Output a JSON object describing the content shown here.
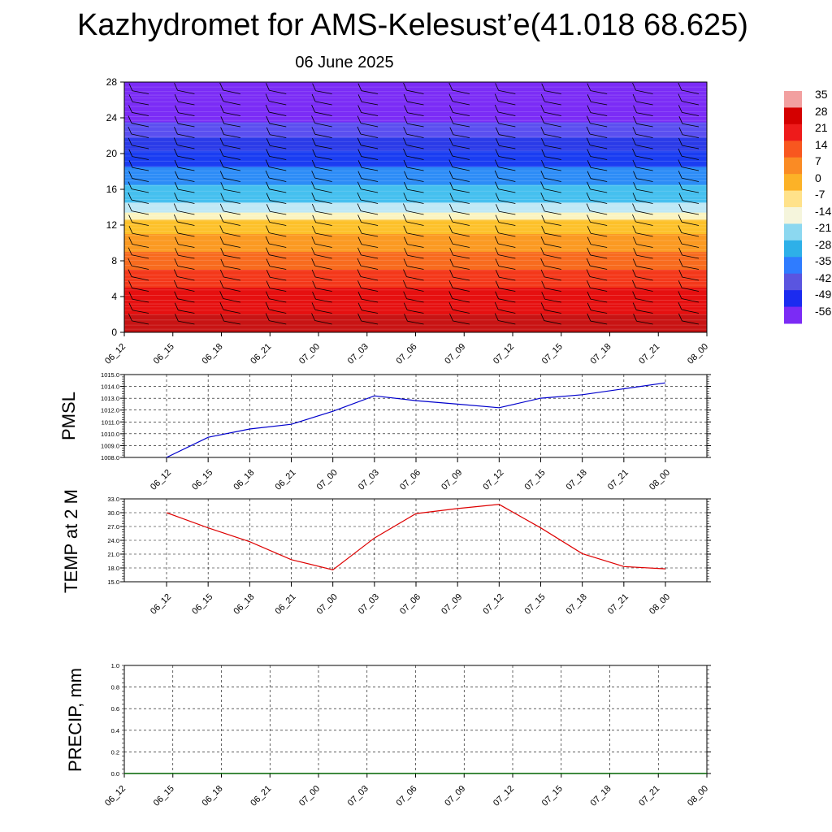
{
  "title": "Kazhydromet for AMS-Kelesust’e(41.018 68.625)",
  "subtitle": "06 June 2025",
  "colorbar": {
    "labels": [
      "35",
      "28",
      "21",
      "14",
      "7",
      "0",
      "-7",
      "-14",
      "-21",
      "-28",
      "-35",
      "-42",
      "-49",
      "-56"
    ],
    "colors": [
      "#f2a0a0",
      "#d40000",
      "#ee1b1b",
      "#f8571f",
      "#fa8b24",
      "#fcb227",
      "#ffe28a",
      "#f5f5dc",
      "#8cd8f0",
      "#2eb0e8",
      "#2f7cff",
      "#5a55e0",
      "#1b2bf0",
      "#7b2bf5"
    ]
  },
  "chart_data": [
    {
      "type": "heatmap",
      "name": "cross-section",
      "ylim": [
        0,
        28
      ],
      "yticks": [
        0,
        4,
        8,
        12,
        16,
        20,
        24,
        28
      ],
      "xtick_labels": [
        "06_12",
        "06_15",
        "06_18",
        "06_21",
        "07_00",
        "07_03",
        "07_06",
        "07_09",
        "07_12",
        "07_15",
        "07_18",
        "07_21",
        "08_00"
      ],
      "color_bands": [
        {
          "from": 0,
          "to": 2,
          "color": "#c81414"
        },
        {
          "from": 2,
          "to": 5,
          "color": "#e61010"
        },
        {
          "from": 5,
          "to": 7,
          "color": "#f4381a"
        },
        {
          "from": 7,
          "to": 9,
          "color": "#f86b1e"
        },
        {
          "from": 9,
          "to": 11,
          "color": "#fb9a22"
        },
        {
          "from": 11,
          "to": 12.6,
          "color": "#fdc12a"
        },
        {
          "from": 12.6,
          "to": 13.4,
          "color": "#fbf4c0"
        },
        {
          "from": 13.4,
          "to": 14.5,
          "color": "#bfe8f5"
        },
        {
          "from": 14.5,
          "to": 16.5,
          "color": "#45c0ef"
        },
        {
          "from": 16.5,
          "to": 18.5,
          "color": "#2c8cf7"
        },
        {
          "from": 18.5,
          "to": 20.3,
          "color": "#1a3df2"
        },
        {
          "from": 20.3,
          "to": 21.8,
          "color": "#2a3ae8"
        },
        {
          "from": 21.8,
          "to": 23.5,
          "color": "#5a4ff0"
        },
        {
          "from": 23.5,
          "to": 28,
          "color": "#7b2cf6"
        }
      ]
    },
    {
      "type": "line",
      "name": "pmsl",
      "ylabel": "PMSL",
      "ylim": [
        1008.0,
        1015.0
      ],
      "yticks": [
        "1008.0",
        "1009.0",
        "1010.0",
        "1011.0",
        "1012.0",
        "1013.0",
        "1014.0",
        "1015.0"
      ],
      "xtick_labels": [
        "06_12",
        "06_15",
        "06_18",
        "06_21",
        "07_00",
        "07_03",
        "07_06",
        "07_09",
        "07_12",
        "07_15",
        "07_18",
        "07_21",
        "08_00"
      ],
      "values": [
        1008.0,
        1009.7,
        1010.4,
        1010.8,
        1011.9,
        1013.2,
        1012.8,
        1012.5,
        1012.2,
        1013.0,
        1013.3,
        1013.8,
        1014.3
      ],
      "color": "#0000cc"
    },
    {
      "type": "line",
      "name": "temp2m",
      "ylabel": "TEMP at 2 M",
      "ylim": [
        15.0,
        33.0
      ],
      "yticks": [
        "15.0",
        "18.0",
        "21.0",
        "24.0",
        "27.0",
        "30.0",
        "33.0"
      ],
      "xtick_labels": [
        "06_12",
        "06_15",
        "06_18",
        "06_21",
        "07_00",
        "07_03",
        "07_06",
        "07_09",
        "07_12",
        "07_15",
        "07_18",
        "07_21",
        "08_00"
      ],
      "values": [
        30.0,
        26.7,
        23.7,
        19.8,
        17.6,
        24.5,
        29.8,
        30.9,
        31.8,
        26.7,
        21.1,
        18.3,
        17.8
      ],
      "color": "#dd0000"
    },
    {
      "type": "line",
      "name": "precip",
      "ylabel": "PRECIP, mm",
      "ylim": [
        0.0,
        1.0
      ],
      "yticks": [
        "0.0",
        "0.2",
        "0.4",
        "0.6",
        "0.8",
        "1.0"
      ],
      "xtick_labels": [
        "06_12",
        "06_15",
        "06_18",
        "06_21",
        "07_00",
        "07_03",
        "07_06",
        "07_09",
        "07_12",
        "07_15",
        "07_18",
        "07_21",
        "08_00"
      ],
      "values": [
        0,
        0,
        0,
        0,
        0,
        0,
        0,
        0,
        0,
        0,
        0,
        0,
        0
      ],
      "color": "#006400"
    }
  ]
}
